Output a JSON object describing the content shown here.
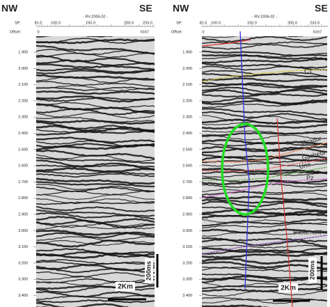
{
  "panels": [
    {
      "left_label": "NW",
      "right_label": "SE",
      "sp_label": "SP:",
      "sp_values": [
        "81.5",
        "100.0",
        "150.0",
        "200.0",
        "233.0"
      ],
      "line_name": "- RV-2006-02 -",
      "offset_label": "Offset:",
      "offset_values": [
        "0",
        "6167"
      ],
      "time_labels": [
        "1.900",
        "2.000",
        "2.100",
        "2.200",
        "2.300",
        "2.400",
        "2.500",
        "2.600",
        "2.700",
        "2.800",
        "2.900",
        "3.000",
        "3.100",
        "3.200",
        "3.300",
        "3.400"
      ],
      "scale_distance": "2Km",
      "scale_time": "200ms"
    },
    {
      "left_label": "NW",
      "right_label": "SE",
      "sp_label": "SP:",
      "sp_values": [
        "81.5",
        "100.0",
        "150.0",
        "200.0",
        "233.0"
      ],
      "line_name": "- RV-2006-02 -",
      "offset_label": "Offset:",
      "offset_values": [
        "0",
        "6167"
      ],
      "time_labels": [
        "1.900",
        "2.000",
        "2.100",
        "2.200",
        "2.300",
        "2.400",
        "2.500",
        "2.600",
        "2.700",
        "2.800",
        "2.900",
        "3.000",
        "3.100",
        "3.200",
        "3.300",
        "3.400"
      ],
      "scale_distance": "2Km",
      "scale_time": "200ms",
      "horizons": [
        {
          "label": "C1",
          "color": "#d8c630"
        },
        {
          "label": "Mirador",
          "color": "#e8743a"
        },
        {
          "label": "Gacheta",
          "color": "#e85050"
        },
        {
          "label": "Une",
          "color": "#5aa84a"
        },
        {
          "label": "Pz",
          "color": "#d050c8"
        },
        {
          "label": "Basament",
          "color": "#7a3aa8"
        }
      ]
    }
  ]
}
